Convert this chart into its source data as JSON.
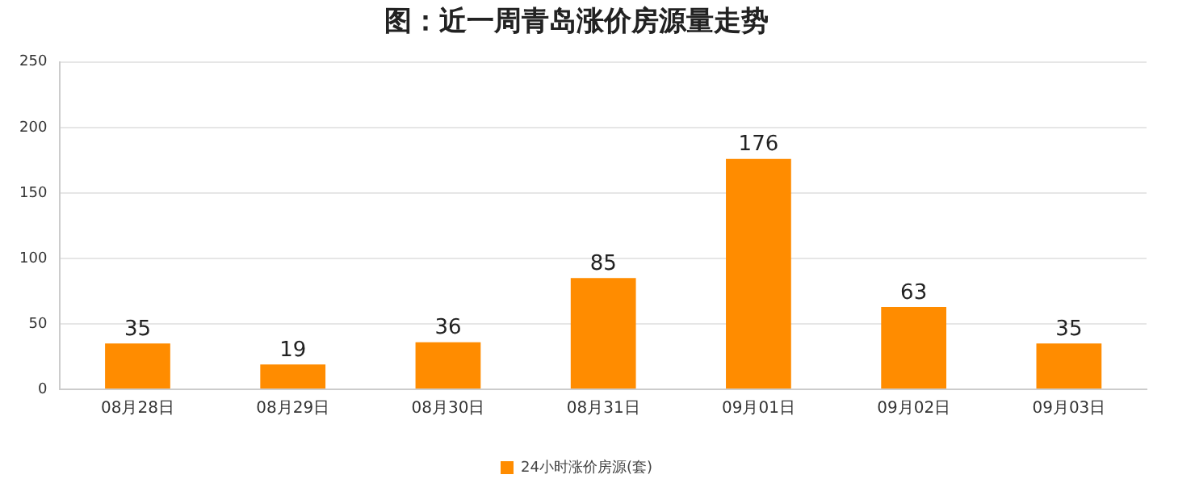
{
  "chart_data": {
    "type": "bar",
    "title": "图：近一周青岛涨价房源量走势",
    "categories": [
      "08月28日",
      "08月29日",
      "08月30日",
      "08月31日",
      "09月01日",
      "09月02日",
      "09月03日"
    ],
    "series": [
      {
        "name": "24小时涨价房源(套)",
        "color": "#ff8c00",
        "values": [
          35,
          19,
          36,
          85,
          176,
          63,
          35
        ]
      }
    ],
    "ylim": [
      0,
      250
    ],
    "yticks": [
      0,
      50,
      100,
      150,
      200,
      250
    ],
    "grid": "y",
    "legend": "bottom",
    "data_labels": true
  }
}
